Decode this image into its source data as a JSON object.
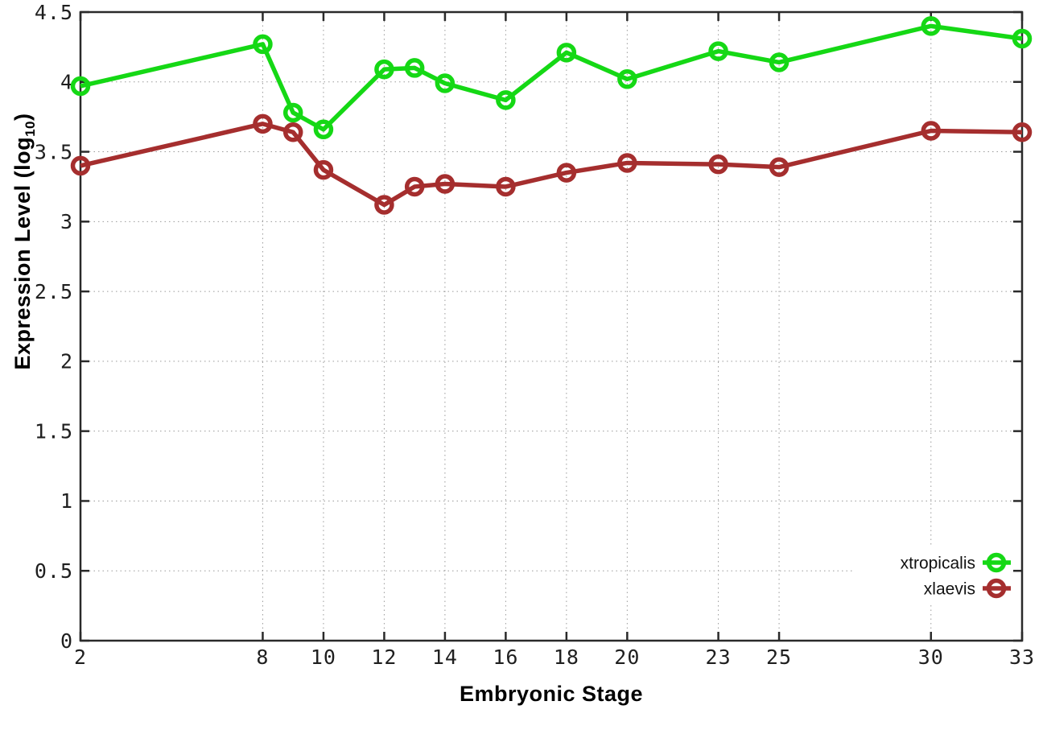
{
  "figure": {
    "background": "#ffffff",
    "xlabel": "Embryonic Stage",
    "ylabel_pre": "Expression Level (log",
    "ylabel_sub": "10",
    "ylabel_post": ")",
    "colors": {
      "axis": "#2a2a2a",
      "grid": "#9a9a9a",
      "tick_text": "#1f1f1f",
      "legend_text": "#111111"
    }
  },
  "chart_data": {
    "type": "line",
    "title": "",
    "xlabel": "Embryonic Stage",
    "ylabel": "Expression Level (log10)",
    "xlim": [
      2,
      33
    ],
    "ylim": [
      0,
      4.5
    ],
    "xticks": [
      2,
      8,
      10,
      12,
      14,
      16,
      18,
      20,
      23,
      25,
      30,
      33
    ],
    "yticks": [
      0,
      0.5,
      1,
      1.5,
      2,
      2.5,
      3,
      3.5,
      4,
      4.5
    ],
    "grid": true,
    "grid_style": "dotted",
    "marker": "open-circle",
    "legend_position": "bottom-right",
    "x": [
      2,
      8,
      9,
      10,
      12,
      13,
      14,
      16,
      18,
      20,
      23,
      25,
      30,
      33
    ],
    "series": [
      {
        "name": "xtropicalis",
        "color": "#15d815",
        "values": [
          3.97,
          4.27,
          3.78,
          3.66,
          4.09,
          4.1,
          3.99,
          3.87,
          4.21,
          4.02,
          4.22,
          4.14,
          4.4,
          4.31
        ]
      },
      {
        "name": "xlaevis",
        "color": "#a52e2e",
        "values": [
          3.4,
          3.7,
          3.64,
          3.37,
          3.12,
          3.25,
          3.27,
          3.25,
          3.35,
          3.42,
          3.41,
          3.39,
          3.65,
          3.64
        ]
      }
    ]
  }
}
